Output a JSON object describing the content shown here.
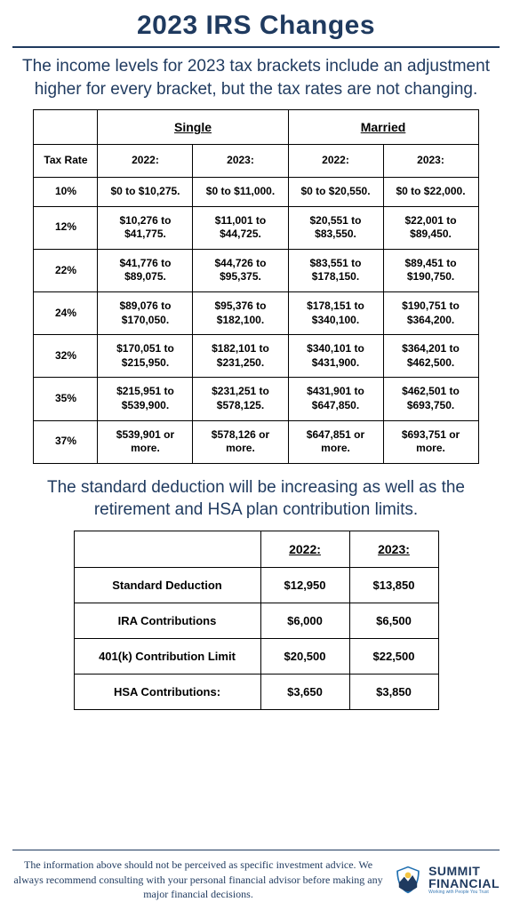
{
  "title": "2023 IRS Changes",
  "intro": "The income levels for 2023 tax brackets include an adjustment higher for every bracket, but the tax rates are not changing.",
  "brackets": {
    "groups": [
      "Single",
      "Married"
    ],
    "years": [
      "2022:",
      "2023:"
    ],
    "rate_header": "Tax Rate",
    "rows": [
      {
        "rate": "10%",
        "single2022": "$0 to $10,275.",
        "single2023": "$0 to $11,000.",
        "married2022": "$0 to $20,550.",
        "married2023": "$0 to $22,000."
      },
      {
        "rate": "12%",
        "single2022": "$10,276 to $41,775.",
        "single2023": "$11,001 to $44,725.",
        "married2022": "$20,551 to $83,550.",
        "married2023": "$22,001 to $89,450."
      },
      {
        "rate": "22%",
        "single2022": "$41,776 to $89,075.",
        "single2023": "$44,726 to $95,375.",
        "married2022": "$83,551 to $178,150.",
        "married2023": "$89,451 to $190,750."
      },
      {
        "rate": "24%",
        "single2022": "$89,076 to $170,050.",
        "single2023": "$95,376 to $182,100.",
        "married2022": "$178,151 to $340,100.",
        "married2023": "$190,751 to $364,200."
      },
      {
        "rate": "32%",
        "single2022": "$170,051 to $215,950.",
        "single2023": "$182,101 to $231,250.",
        "married2022": "$340,101 to $431,900.",
        "married2023": "$364,201 to $462,500."
      },
      {
        "rate": "35%",
        "single2022": "$215,951 to $539,900.",
        "single2023": "$231,251 to $578,125.",
        "married2022": "$431,901 to $647,850.",
        "married2023": "$462,501 to $693,750."
      },
      {
        "rate": "37%",
        "single2022": "$539,901 or more.",
        "single2023": "$578,126 or more.",
        "married2022": "$647,851 or more.",
        "married2023": "$693,751 or more."
      }
    ]
  },
  "intro2": "The standard deduction will be increasing as well as the retirement and HSA plan contribution limits.",
  "deductions": {
    "years": [
      "2022:",
      "2023:"
    ],
    "rows": [
      {
        "label": "Standard Deduction",
        "y2022": "$12,950",
        "y2023": "$13,850"
      },
      {
        "label": "IRA Contributions",
        "y2022": "$6,000",
        "y2023": "$6,500"
      },
      {
        "label": "401(k) Contribution Limit",
        "y2022": "$20,500",
        "y2023": "$22,500"
      },
      {
        "label": "HSA Contributions:",
        "y2022": "$3,650",
        "y2023": "$3,850"
      }
    ]
  },
  "disclaimer": "The information above should not be perceived as specific investment advice. We always recommend consulting with your personal financial advisor before making any major financial decisions.",
  "logo": {
    "line1": "SUMMIT",
    "line2": "FINANCIAL",
    "tagline": "Working with People You Trust"
  },
  "colors": {
    "primary": "#1f3a5f",
    "border": "#000000",
    "background": "#ffffff",
    "logo_accent": "#3a7ab5",
    "logo_gold": "#f5c542",
    "logo_ring": "#1f6fb0"
  }
}
